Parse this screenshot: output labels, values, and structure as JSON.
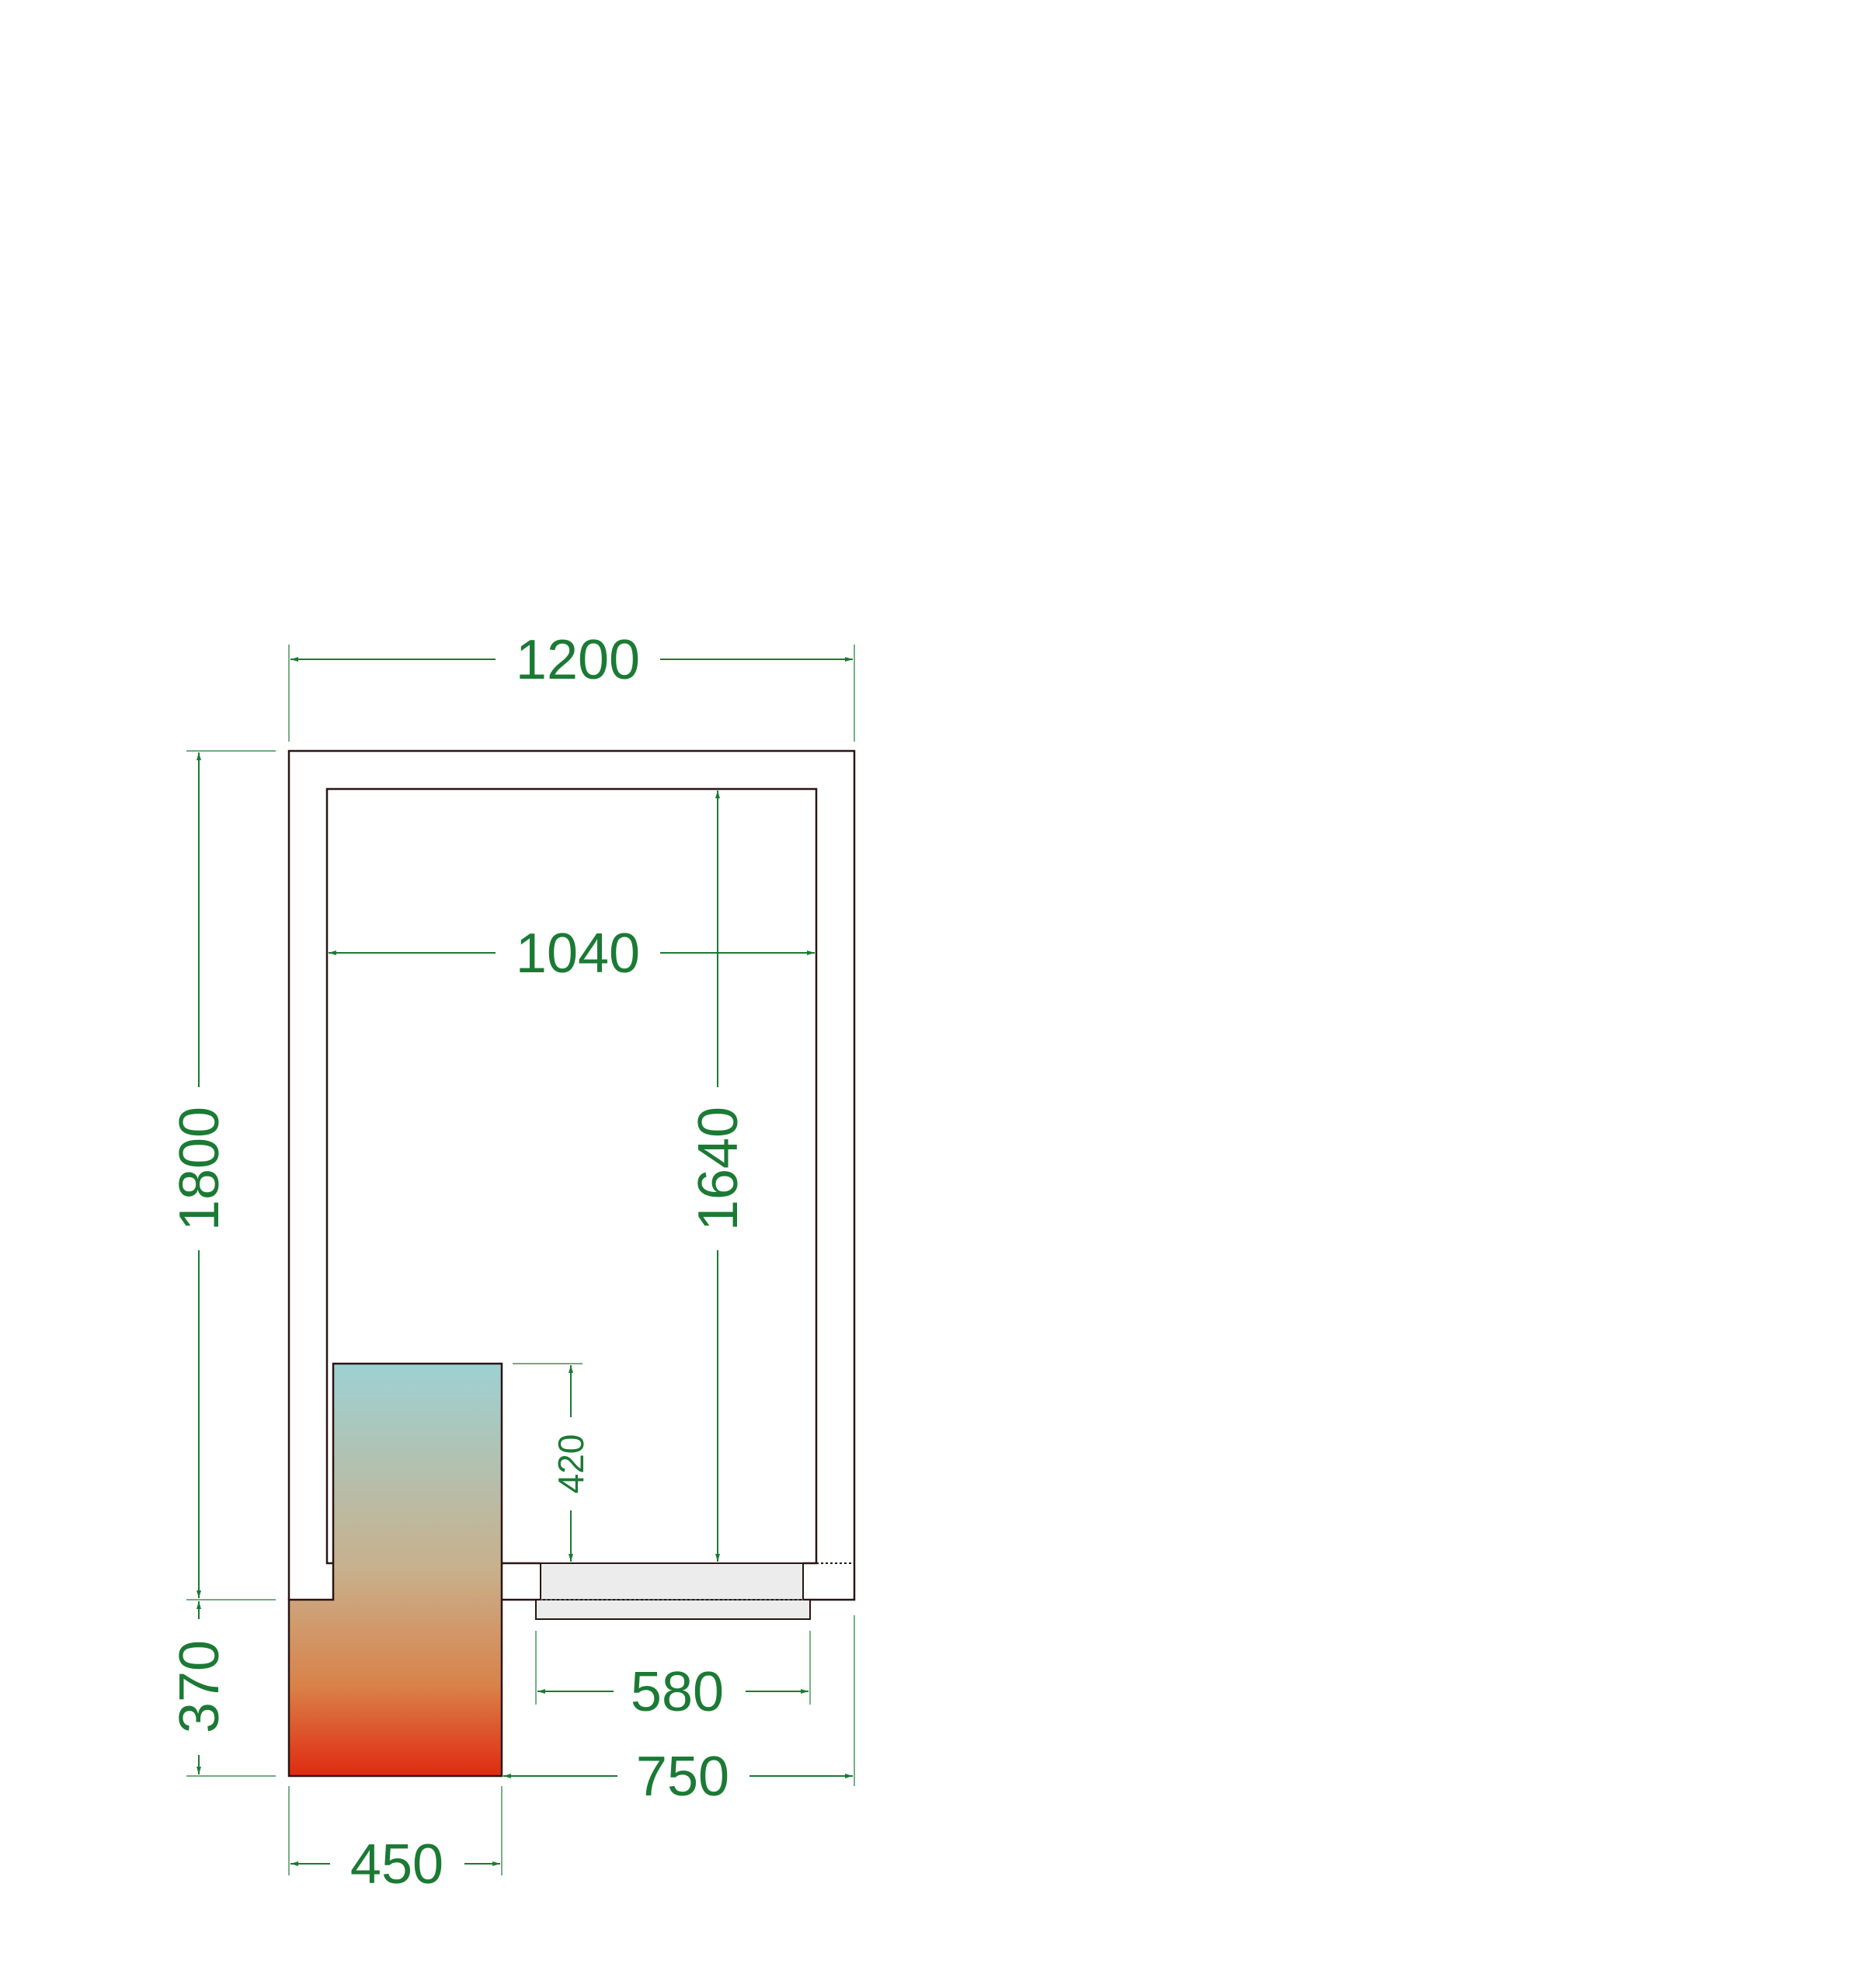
{
  "colors": {
    "dimension": "#1b7a34",
    "outline": "#2a1414",
    "unit_gradient_top": "#9dd1d3",
    "unit_gradient_mid": "#c8b08c",
    "unit_gradient_bottom": "#e02a10",
    "door_fill": "#ececec"
  },
  "dimensions": {
    "outer_width": "1200",
    "inner_width": "1040",
    "outer_depth": "1800",
    "inner_depth": "1640",
    "unit_protrusion": "370",
    "unit_height": "420",
    "door_width": "580",
    "right_offset": "750",
    "unit_width": "450"
  }
}
